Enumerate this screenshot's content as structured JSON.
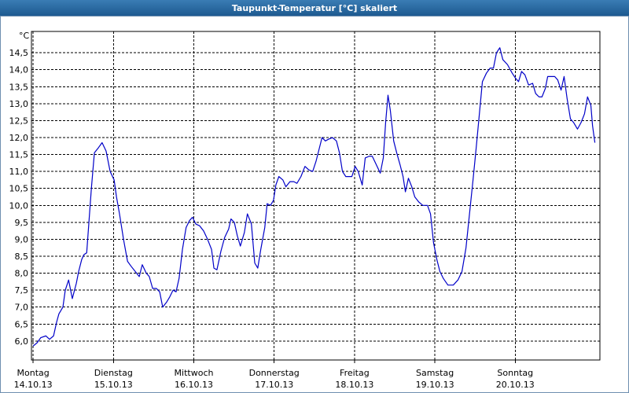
{
  "chart_data": {
    "type": "line",
    "title": "Taupunkt-Temperatur [°C] skaliert",
    "y_axis_label": "°C",
    "xlim": [
      -0.5,
      169.3
    ],
    "xticks": [
      {
        "value": 0,
        "label": "Montag"
      },
      {
        "value": 24,
        "label": "Dienstag"
      },
      {
        "value": 48,
        "label": "Mittwoch"
      },
      {
        "value": 72,
        "label": "Donnerstag"
      },
      {
        "value": 96,
        "label": "Freitag"
      },
      {
        "value": 120,
        "label": "Samstag"
      },
      {
        "value": 144,
        "label": "Sonntag"
      }
    ],
    "xtick_dates": [
      "14.10.13",
      "15.10.13",
      "16.10.13",
      "17.10.13",
      "18.10.13",
      "19.10.13",
      "20.10.13"
    ],
    "ylim": [
      5.44,
      15.13
    ],
    "yticks": [
      {
        "value": 6.0,
        "label": "6,0"
      },
      {
        "value": 6.5,
        "label": "6,5"
      },
      {
        "value": 7.0,
        "label": "7,0"
      },
      {
        "value": 7.5,
        "label": "7,5"
      },
      {
        "value": 8.0,
        "label": "8,0"
      },
      {
        "value": 8.5,
        "label": "8,5"
      },
      {
        "value": 9.0,
        "label": "9,0"
      },
      {
        "value": 9.5,
        "label": "9,5"
      },
      {
        "value": 10.0,
        "label": "10,0"
      },
      {
        "value": 10.5,
        "label": "10,5"
      },
      {
        "value": 11.0,
        "label": "11,0"
      },
      {
        "value": 11.5,
        "label": "11,5"
      },
      {
        "value": 12.0,
        "label": "12,0"
      },
      {
        "value": 12.5,
        "label": "12,5"
      },
      {
        "value": 13.0,
        "label": "13,0"
      },
      {
        "value": 13.5,
        "label": "13,5"
      },
      {
        "value": 14.0,
        "label": "14,0"
      },
      {
        "value": 14.5,
        "label": "14,5"
      }
    ],
    "grid": true,
    "color": "#0000c8",
    "x": [
      0,
      1.2,
      2.3,
      3.8,
      4.9,
      6.1,
      7.0,
      7.7,
      8.9,
      9.6,
      10.6,
      11.7,
      12.9,
      13.6,
      14.5,
      15.2,
      16.0,
      16.7,
      17.4,
      18.3,
      19.5,
      20.6,
      21.8,
      23.0,
      24.2,
      24.9,
      25.8,
      27.0,
      28.2,
      29.3,
      30.5,
      31.7,
      32.6,
      33.8,
      34.7,
      35.7,
      36.8,
      37.8,
      38.7,
      39.9,
      40.8,
      41.8,
      42.7,
      43.6,
      44.6,
      45.7,
      46.7,
      47.6,
      48.6,
      49.7,
      50.9,
      52.1,
      53.3,
      54.0,
      54.9,
      56.1,
      57.2,
      58.4,
      59.1,
      60.1,
      61.0,
      61.9,
      63.1,
      64.0,
      65.2,
      66.2,
      67.1,
      68.0,
      69.2,
      69.9,
      70.9,
      71.8,
      72.5,
      73.4,
      74.6,
      75.5,
      76.7,
      77.9,
      78.8,
      80.0,
      81.2,
      82.3,
      83.5,
      84.5,
      85.4,
      86.3,
      87.3,
      88.2,
      89.4,
      90.6,
      91.5,
      92.4,
      93.4,
      94.3,
      95.2,
      96.2,
      97.1,
      98.3,
      99.2,
      100.4,
      101.3,
      102.5,
      103.7,
      104.6,
      105.3,
      106.0,
      106.7,
      107.7,
      108.6,
      109.6,
      110.5,
      111.2,
      112.1,
      113.1,
      114.0,
      115.2,
      116.4,
      117.8,
      118.7,
      119.6,
      120.6,
      121.5,
      122.5,
      123.9,
      125.5,
      126.9,
      128.1,
      129.3,
      130.4,
      131.4,
      132.3,
      133.3,
      134.2,
      135.4,
      136.5,
      137.5,
      138.4,
      139.4,
      140.3,
      141.7,
      143.1,
      144.1,
      145.0,
      145.9,
      146.9,
      148.0,
      149.2,
      150.1,
      151.1,
      152.0,
      153.0,
      153.7,
      154.6,
      155.8,
      156.7,
      157.7,
      158.6,
      159.5,
      160.5,
      161.4,
      162.6,
      163.7,
      164.7,
      165.6,
      166.6,
      167.1,
      167.8
    ],
    "values": [
      5.85,
      5.95,
      6.1,
      6.15,
      6.05,
      6.15,
      6.55,
      6.8,
      7.0,
      7.5,
      7.8,
      7.25,
      7.7,
      8.05,
      8.4,
      8.55,
      8.6,
      9.55,
      10.5,
      11.55,
      11.7,
      11.85,
      11.6,
      11.0,
      10.75,
      10.25,
      9.75,
      9.0,
      8.35,
      8.2,
      8.05,
      7.9,
      8.25,
      8.0,
      7.9,
      7.55,
      7.55,
      7.45,
      7.0,
      7.15,
      7.3,
      7.5,
      7.45,
      7.85,
      8.7,
      9.35,
      9.55,
      9.65,
      9.45,
      9.4,
      9.25,
      9.0,
      8.7,
      8.15,
      8.1,
      8.65,
      9.05,
      9.3,
      9.6,
      9.5,
      9.1,
      8.8,
      9.2,
      9.75,
      9.45,
      8.3,
      8.15,
      8.7,
      9.35,
      10.05,
      10.0,
      10.15,
      10.6,
      10.85,
      10.75,
      10.55,
      10.7,
      10.7,
      10.65,
      10.85,
      11.15,
      11.05,
      11.0,
      11.3,
      11.65,
      12.0,
      11.9,
      11.95,
      12.0,
      11.9,
      11.55,
      11.0,
      10.85,
      10.85,
      10.85,
      11.15,
      11.0,
      10.6,
      11.4,
      11.45,
      11.45,
      11.2,
      10.95,
      11.4,
      12.45,
      13.25,
      12.8,
      11.9,
      11.55,
      11.2,
      10.85,
      10.4,
      10.8,
      10.55,
      10.25,
      10.1,
      10.0,
      10.0,
      9.75,
      8.9,
      8.4,
      8.05,
      7.85,
      7.65,
      7.65,
      7.8,
      8.05,
      8.75,
      9.8,
      10.75,
      11.65,
      12.7,
      13.65,
      13.9,
      14.05,
      14.05,
      14.5,
      14.65,
      14.3,
      14.15,
      13.9,
      13.75,
      13.65,
      13.95,
      13.85,
      13.55,
      13.6,
      13.3,
      13.2,
      13.2,
      13.45,
      13.8,
      13.8,
      13.8,
      13.7,
      13.4,
      13.8,
      13.15,
      12.55,
      12.45,
      12.25,
      12.45,
      12.7,
      13.2,
      12.95,
      12.35,
      11.85
    ]
  }
}
